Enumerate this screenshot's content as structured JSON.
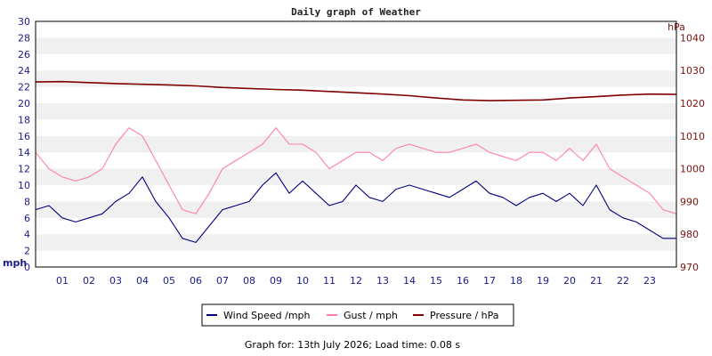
{
  "chart_data": {
    "type": "line",
    "title": "Daily graph of Weather",
    "footer": "Graph for: 13th July 2026; Load time: 0.08 s",
    "y_left": {
      "label": "mph",
      "range": [
        0,
        30
      ],
      "ticks": [
        "0",
        "2",
        "4",
        "6",
        "8",
        "10",
        "12",
        "14",
        "16",
        "18",
        "20",
        "22",
        "24",
        "26",
        "28",
        "30"
      ]
    },
    "y_right": {
      "label": "hPa",
      "range": [
        970,
        1045
      ],
      "ticks": [
        "970",
        "980",
        "990",
        "1000",
        "1010",
        "1020",
        "1030",
        "1040"
      ]
    },
    "x": {
      "range": [
        0,
        24
      ],
      "ticks": [
        "01",
        "02",
        "03",
        "04",
        "05",
        "06",
        "07",
        "08",
        "09",
        "10",
        "11",
        "12",
        "13",
        "14",
        "15",
        "16",
        "17",
        "18",
        "19",
        "20",
        "21",
        "22",
        "23"
      ]
    },
    "grid": "alternating horizontal bands",
    "legend_position": "bottom",
    "series": [
      {
        "name": "Wind Speed /mph",
        "axis": "left",
        "color": "#000080",
        "x": [
          0,
          0.5,
          1,
          1.5,
          2,
          2.5,
          3,
          3.5,
          4,
          4.5,
          5,
          5.5,
          6,
          6.5,
          7,
          7.5,
          8,
          8.5,
          9,
          9.5,
          10,
          10.5,
          11,
          11.5,
          12,
          12.5,
          13,
          13.5,
          14,
          14.5,
          15,
          15.5,
          16,
          16.5,
          17,
          17.5,
          18,
          18.5,
          19,
          19.5,
          20,
          20.5,
          21,
          21.5,
          22,
          22.5,
          23,
          23.5,
          24
        ],
        "values": [
          7,
          7.5,
          6,
          5.5,
          6,
          6.5,
          8,
          9,
          11,
          8,
          6,
          3.5,
          3,
          5,
          7,
          7.5,
          8,
          10,
          11.5,
          9,
          10.5,
          9,
          7.5,
          8,
          10,
          8.5,
          8,
          9.5,
          10,
          9.5,
          9,
          8.5,
          9.5,
          10.5,
          9,
          8.5,
          7.5,
          8.5,
          9,
          8,
          9,
          7.5,
          10,
          7,
          6,
          5.5,
          4.5,
          3.5,
          3.5
        ]
      },
      {
        "name": "Gust / mph",
        "axis": "left",
        "color": "#ff7fa5",
        "x": [
          0,
          0.5,
          1,
          1.5,
          2,
          2.5,
          3,
          3.5,
          4,
          4.5,
          5,
          5.5,
          6,
          6.5,
          7,
          7.5,
          8,
          8.5,
          9,
          9.5,
          10,
          10.5,
          11,
          11.5,
          12,
          12.5,
          13,
          13.5,
          14,
          14.5,
          15,
          15.5,
          16,
          16.5,
          17,
          17.5,
          18,
          18.5,
          19,
          19.5,
          20,
          20.5,
          21,
          21.5,
          22,
          22.5,
          23,
          23.5,
          24
        ],
        "values": [
          14,
          12,
          11,
          10.5,
          11,
          12,
          15,
          17,
          16,
          13,
          10,
          7,
          6.5,
          9,
          12,
          13,
          14,
          15,
          17,
          15,
          15,
          14,
          12,
          13,
          14,
          14,
          13,
          14.5,
          15,
          14.5,
          14,
          14,
          14.5,
          15,
          14,
          13.5,
          13,
          14,
          14,
          13,
          14.5,
          13,
          15,
          12,
          11,
          10,
          9,
          7,
          6.5
        ]
      },
      {
        "name": "Pressure / hPa",
        "axis": "right",
        "color": "#800000",
        "x": [
          0,
          1,
          2,
          3,
          4,
          5,
          6,
          7,
          8,
          9,
          10,
          11,
          12,
          13,
          14,
          15,
          16,
          17,
          18,
          19,
          20,
          21,
          22,
          23,
          24
        ],
        "values": [
          1026.5,
          1026.6,
          1026.3,
          1026.0,
          1025.8,
          1025.6,
          1025.3,
          1024.8,
          1024.5,
          1024.2,
          1024.0,
          1023.6,
          1023.2,
          1022.8,
          1022.3,
          1021.6,
          1021.0,
          1020.8,
          1020.9,
          1021.0,
          1021.6,
          1022.0,
          1022.5,
          1022.8,
          1022.7
        ]
      }
    ]
  }
}
